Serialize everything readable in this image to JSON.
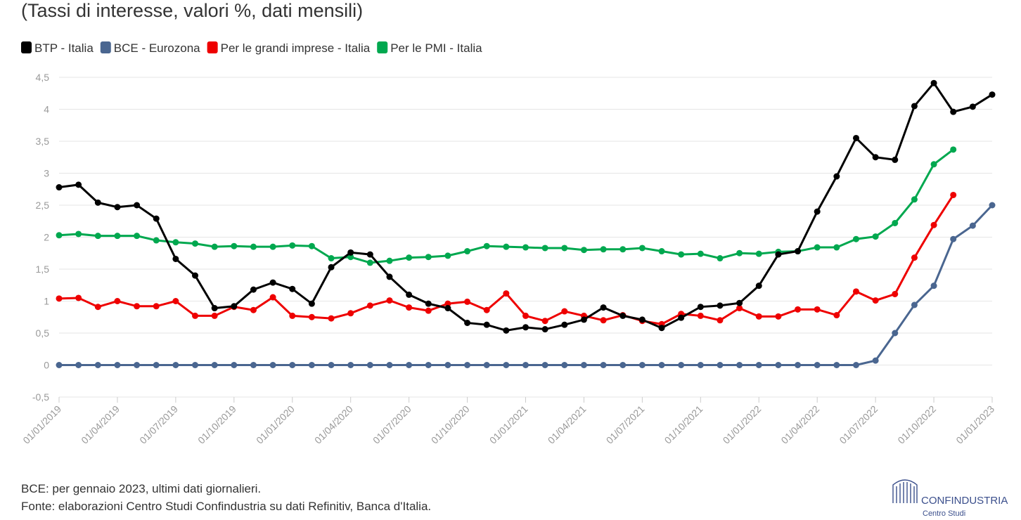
{
  "chart_data": {
    "type": "line",
    "subtitle": "(Tassi di interesse, valori %, dati mensili)",
    "categories": [
      "01/01/2019",
      null,
      null,
      "01/04/2019",
      null,
      null,
      "01/07/2019",
      null,
      null,
      "01/10/2019",
      null,
      null,
      "01/01/2020",
      null,
      null,
      "01/04/2020",
      null,
      null,
      "01/07/2020",
      null,
      null,
      "01/10/2020",
      null,
      null,
      "01/01/2021",
      null,
      null,
      "01/04/2021",
      null,
      null,
      "01/07/2021",
      null,
      null,
      "01/10/2021",
      null,
      null,
      "01/01/2022",
      null,
      null,
      "01/04/2022",
      null,
      null,
      "01/07/2022",
      null,
      null,
      "01/10/2022",
      null,
      null,
      "01/01/2023"
    ],
    "series": [
      {
        "name": "BTP - Italia",
        "color": "#000000",
        "values": [
          2.78,
          2.82,
          2.54,
          2.47,
          2.5,
          2.29,
          1.66,
          1.4,
          0.89,
          0.92,
          1.18,
          1.29,
          1.19,
          0.96,
          1.53,
          1.76,
          1.73,
          1.38,
          1.1,
          0.96,
          0.89,
          0.66,
          0.63,
          0.54,
          0.59,
          0.56,
          0.63,
          0.71,
          0.9,
          0.77,
          0.71,
          0.58,
          0.74,
          0.91,
          0.93,
          0.97,
          1.24,
          1.73,
          1.78,
          2.4,
          2.95,
          3.55,
          3.25,
          3.21,
          4.05,
          4.41,
          3.96,
          4.04,
          4.23
        ]
      },
      {
        "name": "BCE - Eurozona",
        "color": "#4a6690",
        "values": [
          0,
          0,
          0,
          0,
          0,
          0,
          0,
          0,
          0,
          0,
          0,
          0,
          0,
          0,
          0,
          0,
          0,
          0,
          0,
          0,
          0,
          0,
          0,
          0,
          0,
          0,
          0,
          0,
          0,
          0,
          0,
          0,
          0,
          0,
          0,
          0,
          0,
          0,
          0,
          0,
          0,
          0,
          0.07,
          0.5,
          0.94,
          1.24,
          1.97,
          2.18,
          2.5
        ]
      },
      {
        "name": "Per le grandi imprese - Italia",
        "color": "#ee0000",
        "values": [
          1.04,
          1.05,
          0.91,
          1.0,
          0.92,
          0.92,
          1.0,
          0.77,
          0.77,
          0.91,
          0.86,
          1.06,
          0.77,
          0.75,
          0.73,
          0.81,
          0.93,
          1.01,
          0.9,
          0.85,
          0.96,
          0.99,
          0.86,
          1.12,
          0.77,
          0.69,
          0.84,
          0.77,
          0.7,
          0.78,
          0.69,
          0.64,
          0.8,
          0.77,
          0.7,
          0.89,
          0.76,
          0.76,
          0.87,
          0.87,
          0.78,
          1.15,
          1.01,
          1.11,
          1.68,
          2.19,
          2.66,
          null,
          null
        ]
      },
      {
        "name": "Per le PMI - Italia",
        "color": "#00a84f",
        "values": [
          2.03,
          2.05,
          2.02,
          2.02,
          2.02,
          1.95,
          1.92,
          1.9,
          1.85,
          1.86,
          1.85,
          1.85,
          1.87,
          1.86,
          1.67,
          1.69,
          1.6,
          1.63,
          1.68,
          1.69,
          1.71,
          1.78,
          1.86,
          1.85,
          1.84,
          1.83,
          1.83,
          1.8,
          1.81,
          1.81,
          1.83,
          1.78,
          1.73,
          1.74,
          1.67,
          1.75,
          1.74,
          1.77,
          1.78,
          1.84,
          1.84,
          1.97,
          2.01,
          2.22,
          2.59,
          3.14,
          3.37,
          null,
          null
        ]
      }
    ],
    "ylim": [
      -0.5,
      4.5
    ],
    "yticks": [
      {
        "value": -0.5,
        "label": "-0,5"
      },
      0,
      {
        "value": 0.5,
        "label": "0,5"
      },
      1,
      {
        "value": 1.5,
        "label": "1,5"
      },
      2,
      {
        "value": 2.5,
        "label": "2,5"
      },
      3,
      {
        "value": 3.5,
        "label": "3,5"
      },
      4,
      {
        "value": 4.5,
        "label": "4,5"
      }
    ],
    "grid": true,
    "legend": "top-left",
    "notes": [
      "BCE: per gennaio 2023, ultimi dati giornalieri.",
      "Fonte: elaborazioni Centro Studi Confindustria su dati Refinitiv, Banca d'Italia."
    ]
  },
  "logo": {
    "name": "CONFINDUSTRIA",
    "sub": "Centro Studi"
  }
}
